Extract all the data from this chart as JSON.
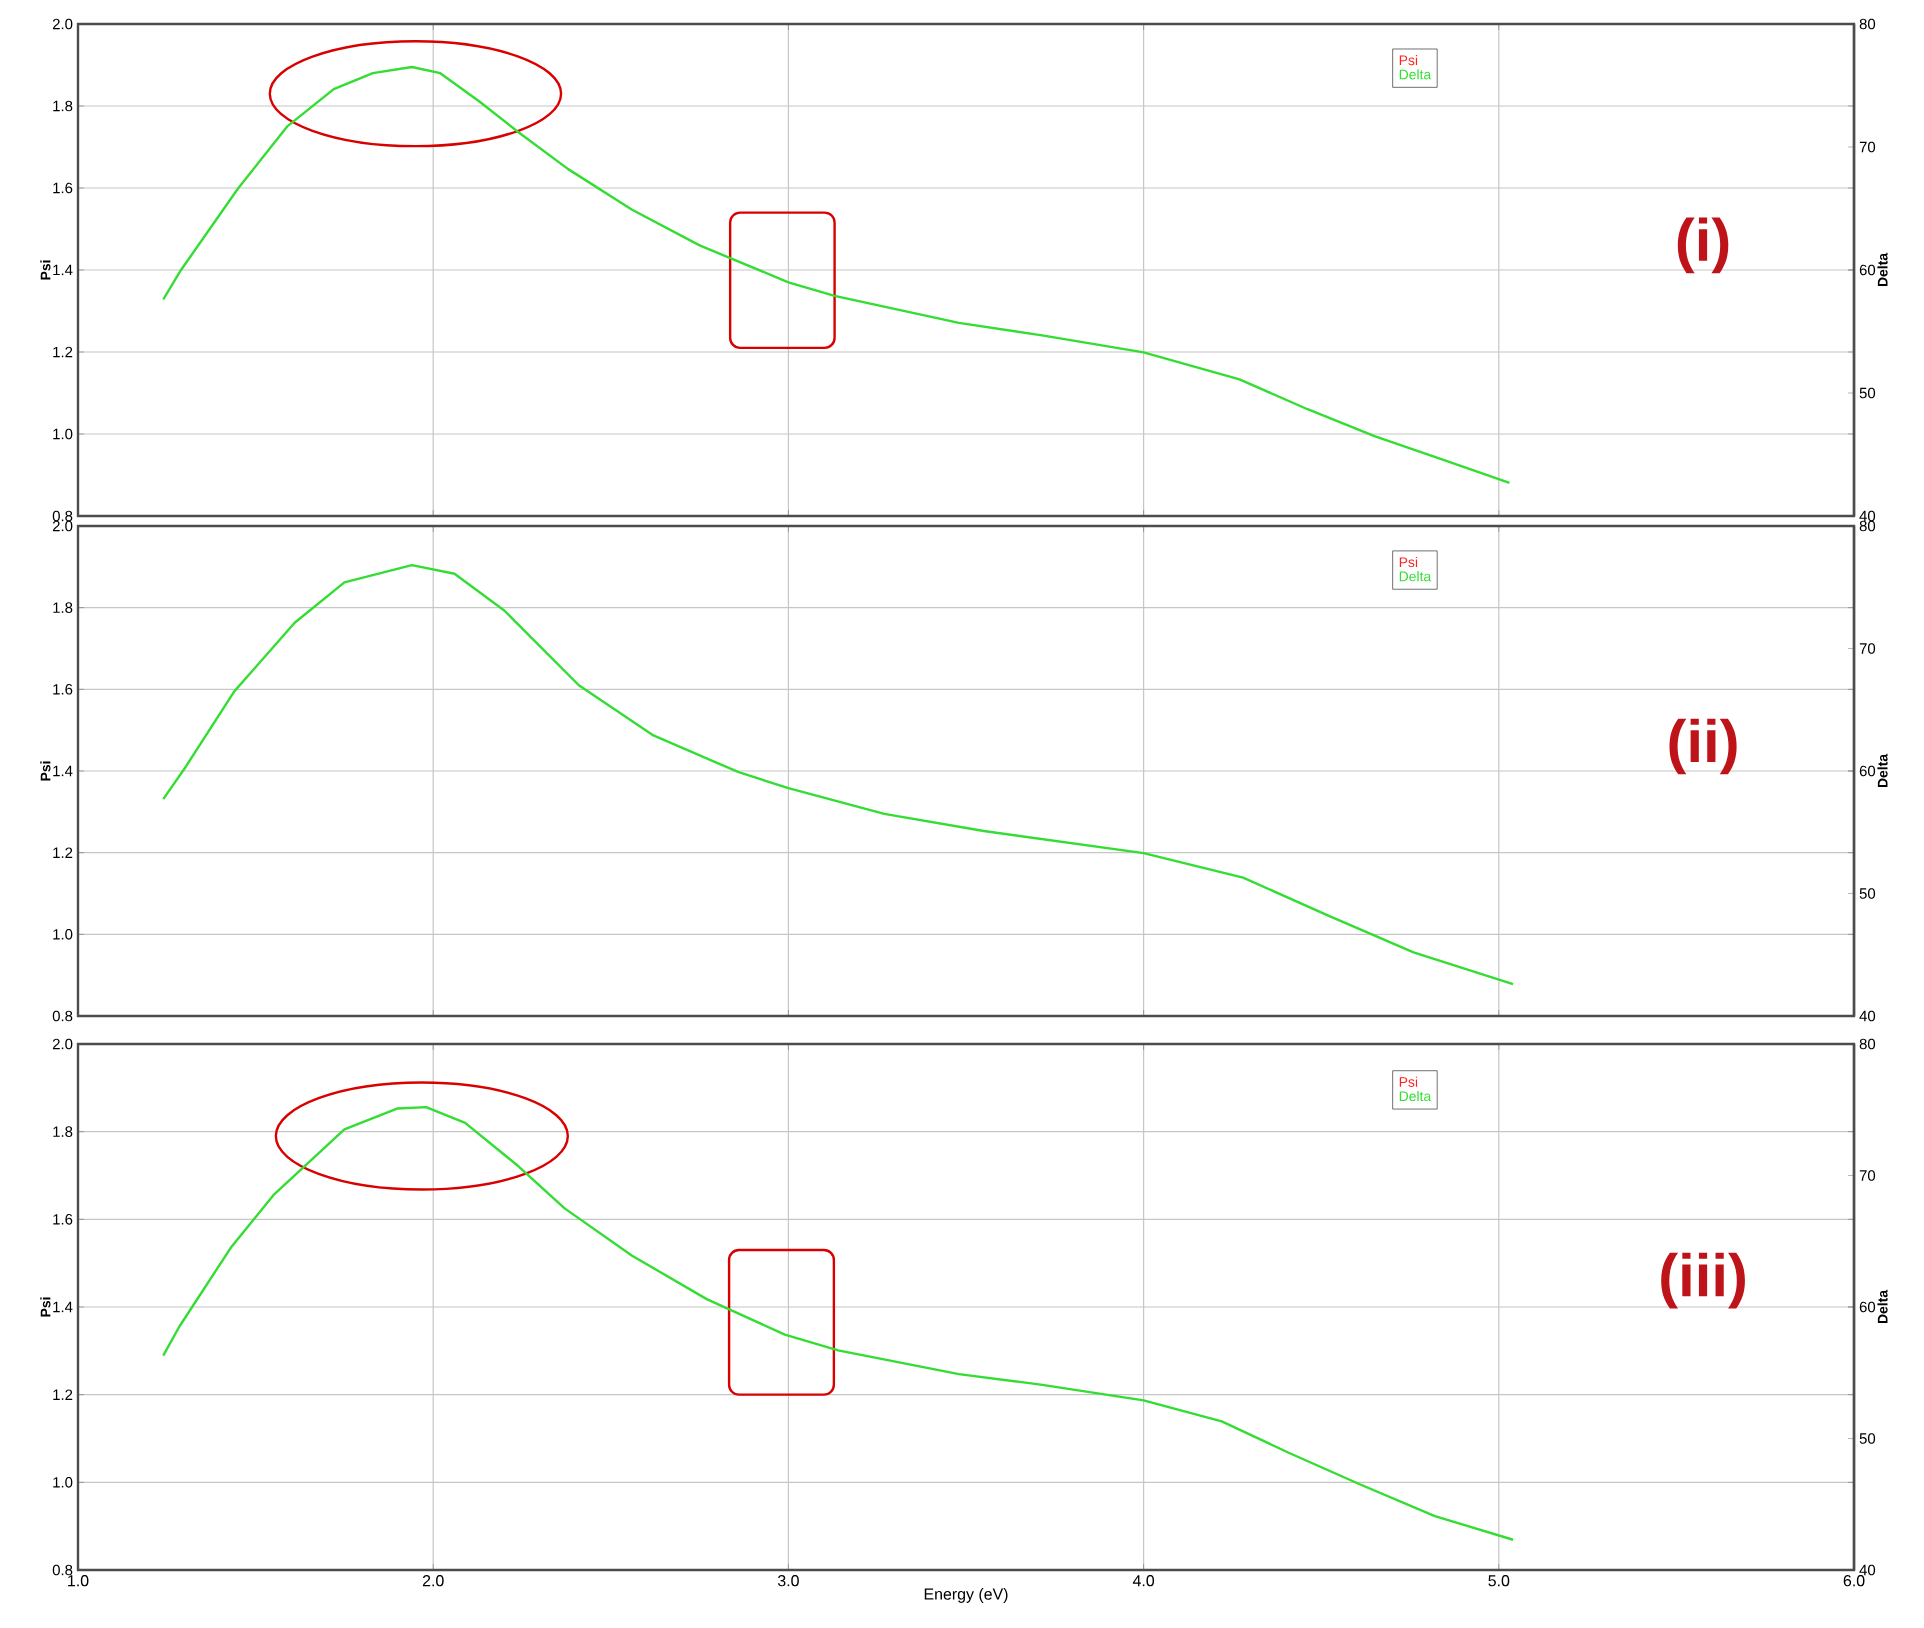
{
  "chart_data": [
    {
      "type": "line",
      "ylabel": "Psi",
      "y2label": "Delta",
      "annotations": [
        "(i)"
      ],
      "xlim": [
        1.0,
        6.0
      ],
      "xticks": [
        {
          "value": 1,
          "label": null
        },
        {
          "value": 2,
          "label": null
        },
        {
          "value": 3,
          "label": null
        },
        {
          "value": 4,
          "label": null
        },
        {
          "value": 5,
          "label": null
        },
        {
          "value": 6,
          "label": null
        }
      ],
      "ylim": [
        0.8,
        2.0
      ],
      "yticks": [
        {
          "value": 0.8,
          "label": "0.8"
        },
        {
          "value": 1.0,
          "label": "1.0"
        },
        {
          "value": 1.2,
          "label": "1.2"
        },
        {
          "value": 1.4,
          "label": "1.4"
        },
        {
          "value": 1.6,
          "label": "1.6"
        },
        {
          "value": 1.8,
          "label": "1.8"
        },
        {
          "value": 2.0,
          "label": "2.0"
        }
      ],
      "y2lim": [
        40,
        80
      ],
      "y2ticks": [
        40,
        50,
        60,
        70,
        80
      ],
      "tick_labels": "y",
      "grid": true,
      "legend": "top right",
      "marker": "none",
      "line_style": "solid",
      "series": [
        {
          "name": "Psi",
          "color": "#ff2020"
        },
        {
          "name": "Delta",
          "color": "#33dd33",
          "axis": "y2",
          "x": [
            1.24,
            1.29,
            1.45,
            1.59,
            1.72,
            1.83,
            1.94,
            2.02,
            2.13,
            2.24,
            2.38,
            2.56,
            2.75,
            3.0,
            3.13,
            3.48,
            3.71,
            4.0,
            4.27,
            4.46,
            4.65,
            4.84,
            5.03
          ],
          "values": [
            57.6,
            60.0,
            66.6,
            71.7,
            74.7,
            76.0,
            76.5,
            76.0,
            73.7,
            71.2,
            68.2,
            64.9,
            62.0,
            59.0,
            57.9,
            55.7,
            54.7,
            53.3,
            51.1,
            48.7,
            46.5,
            44.6,
            42.7
          ]
        }
      ]
    },
    {
      "type": "line",
      "ylabel": "Psi",
      "y2label": "Delta",
      "annotations": [
        "(ii)"
      ],
      "xlim": [
        1.0,
        6.0
      ],
      "xticks": [
        {
          "value": 1,
          "label": null
        },
        {
          "value": 2,
          "label": null
        },
        {
          "value": 3,
          "label": null
        },
        {
          "value": 4,
          "label": null
        },
        {
          "value": 5,
          "label": null
        },
        {
          "value": 6,
          "label": null
        }
      ],
      "ylim": [
        0.8,
        2.0
      ],
      "yticks": [
        {
          "value": 0.8,
          "label": "0.8"
        },
        {
          "value": 1.0,
          "label": "1.0"
        },
        {
          "value": 1.2,
          "label": "1.2"
        },
        {
          "value": 1.4,
          "label": "1.4"
        },
        {
          "value": 1.6,
          "label": "1.6"
        },
        {
          "value": 1.8,
          "label": "1.8"
        },
        {
          "value": 2.0,
          "label": "2.0"
        }
      ],
      "y2lim": [
        40,
        80
      ],
      "y2ticks": [
        40,
        50,
        60,
        70,
        80
      ],
      "tick_labels": "y",
      "grid": true,
      "legend": "top right",
      "marker": "none",
      "line_style": "solid",
      "series": [
        {
          "name": "Psi",
          "color": "#ff2020"
        },
        {
          "name": "Delta",
          "color": "#33dd33",
          "axis": "y2",
          "x": [
            1.24,
            1.3,
            1.44,
            1.61,
            1.75,
            1.94,
            2.06,
            2.2,
            2.41,
            2.62,
            2.86,
            3.0,
            3.27,
            3.55,
            4.0,
            4.28,
            4.52,
            4.76,
            5.04
          ],
          "values": [
            57.7,
            60.2,
            66.5,
            72.1,
            75.4,
            76.8,
            76.1,
            73.1,
            67.0,
            62.9,
            59.9,
            58.6,
            56.5,
            55.1,
            53.3,
            51.3,
            48.2,
            45.2,
            42.6
          ]
        }
      ]
    },
    {
      "type": "line",
      "xlabel": "Energy (eV)",
      "ylabel": "Psi",
      "y2label": "Delta",
      "annotations": [
        "(iii)"
      ],
      "xlim": [
        1.0,
        6.0
      ],
      "xticks": [
        {
          "value": 1,
          "label": "1.0"
        },
        {
          "value": 2,
          "label": "2.0"
        },
        {
          "value": 3,
          "label": "3.0"
        },
        {
          "value": 4,
          "label": "4.0"
        },
        {
          "value": 5,
          "label": "5.0"
        },
        {
          "value": 6,
          "label": "6.0"
        }
      ],
      "ylim": [
        0.8,
        2.0
      ],
      "yticks": [
        {
          "value": 0.8,
          "label": "0.8"
        },
        {
          "value": 1.0,
          "label": "1.0"
        },
        {
          "value": 1.2,
          "label": "1.2"
        },
        {
          "value": 1.4,
          "label": "1.4"
        },
        {
          "value": 1.6,
          "label": "1.6"
        },
        {
          "value": 1.8,
          "label": "1.8"
        },
        {
          "value": 2.0,
          "label": "2.0"
        }
      ],
      "y2lim": [
        40,
        80
      ],
      "y2ticks": [
        40,
        50,
        60,
        70,
        80
      ],
      "grid": true,
      "legend": "top right",
      "marker": "none",
      "line_style": "solid",
      "series": [
        {
          "name": "Psi",
          "color": "#ff2020"
        },
        {
          "name": "Delta",
          "color": "#33dd33",
          "axis": "y2",
          "x": [
            1.24,
            1.285,
            1.43,
            1.55,
            1.75,
            1.9,
            1.98,
            2.09,
            2.24,
            2.37,
            2.56,
            2.77,
            2.99,
            3.14,
            3.48,
            3.71,
            4.0,
            4.22,
            4.41,
            4.61,
            4.82,
            5.04
          ],
          "values": [
            56.3,
            58.5,
            64.5,
            68.5,
            73.5,
            75.1,
            75.2,
            74.0,
            70.7,
            67.5,
            63.9,
            60.6,
            57.9,
            56.7,
            54.9,
            54.1,
            52.9,
            51.3,
            48.9,
            46.5,
            44.1,
            42.3
          ]
        }
      ]
    }
  ]
}
